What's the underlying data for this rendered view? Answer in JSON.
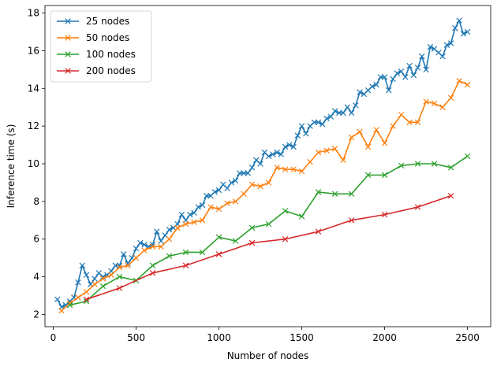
{
  "chart_data": {
    "type": "line",
    "title": "",
    "xlabel": "Number of nodes",
    "ylabel": "Inference time (s)",
    "xlim": [
      -50,
      2640
    ],
    "ylim": [
      1.35,
      18.4
    ],
    "xticks": [
      0,
      500,
      1000,
      1500,
      2000,
      2500
    ],
    "yticks": [
      2,
      4,
      6,
      8,
      10,
      12,
      14,
      16,
      18
    ],
    "grid": false,
    "legend": "top-left",
    "marker": "x",
    "series": [
      {
        "name": "25 nodes",
        "color": "#1f77b4",
        "x": [
          25,
          50,
          75,
          100,
          125,
          150,
          175,
          200,
          225,
          250,
          275,
          300,
          325,
          350,
          375,
          400,
          425,
          450,
          475,
          500,
          525,
          550,
          575,
          600,
          625,
          650,
          675,
          700,
          725,
          750,
          775,
          800,
          825,
          850,
          875,
          900,
          925,
          950,
          975,
          1000,
          1025,
          1050,
          1075,
          1100,
          1125,
          1150,
          1175,
          1200,
          1225,
          1250,
          1275,
          1300,
          1325,
          1350,
          1375,
          1400,
          1425,
          1450,
          1475,
          1500,
          1525,
          1550,
          1575,
          1600,
          1625,
          1650,
          1675,
          1700,
          1725,
          1750,
          1775,
          1800,
          1825,
          1850,
          1875,
          1900,
          1925,
          1950,
          1975,
          2000,
          2025,
          2050,
          2075,
          2100,
          2125,
          2150,
          2175,
          2200,
          2225,
          2250,
          2275,
          2300,
          2325,
          2350,
          2375,
          2400,
          2425,
          2450,
          2475,
          2500
        ],
        "y": [
          2.8,
          2.4,
          2.5,
          2.7,
          2.9,
          3.7,
          4.6,
          4.1,
          3.6,
          3.9,
          4.2,
          4.0,
          4.1,
          4.3,
          4.6,
          4.6,
          5.2,
          4.7,
          5.0,
          5.5,
          5.8,
          5.7,
          5.6,
          5.7,
          6.4,
          5.9,
          6.2,
          6.5,
          6.6,
          6.8,
          7.3,
          7.0,
          7.3,
          7.4,
          7.7,
          7.8,
          8.3,
          8.3,
          8.5,
          8.6,
          8.9,
          8.7,
          9.0,
          9.1,
          9.5,
          9.5,
          9.5,
          9.8,
          10.2,
          10.0,
          10.6,
          10.4,
          10.5,
          10.6,
          10.5,
          10.9,
          11.0,
          10.9,
          11.5,
          12.0,
          11.6,
          12.0,
          12.2,
          12.2,
          12.1,
          12.4,
          12.5,
          12.8,
          12.7,
          12.7,
          13.0,
          12.7,
          13.1,
          13.8,
          13.7,
          13.9,
          14.1,
          14.2,
          14.6,
          14.6,
          13.9,
          14.5,
          14.8,
          14.9,
          14.6,
          15.2,
          14.7,
          15.1,
          15.7,
          15.0,
          16.2,
          16.1,
          15.9,
          15.7,
          16.3,
          16.4,
          17.2,
          17.6,
          16.9,
          17.0
        ]
      },
      {
        "name": "50 nodes",
        "color": "#ff7f0e",
        "x": [
          50,
          100,
          150,
          200,
          250,
          300,
          350,
          400,
          450,
          500,
          550,
          600,
          650,
          700,
          750,
          800,
          850,
          900,
          950,
          1000,
          1050,
          1100,
          1150,
          1200,
          1250,
          1300,
          1350,
          1400,
          1450,
          1500,
          1550,
          1600,
          1650,
          1700,
          1750,
          1800,
          1850,
          1900,
          1950,
          2000,
          2050,
          2100,
          2150,
          2200,
          2250,
          2300,
          2350,
          2400,
          2450,
          2500
        ],
        "y": [
          2.2,
          2.6,
          2.9,
          3.2,
          3.6,
          3.9,
          4.1,
          4.5,
          4.6,
          5.0,
          5.4,
          5.6,
          5.6,
          6.0,
          6.6,
          6.8,
          6.9,
          7.0,
          7.7,
          7.6,
          7.9,
          8.0,
          8.4,
          8.9,
          8.8,
          9.0,
          9.8,
          9.7,
          9.7,
          9.6,
          10.1,
          10.6,
          10.7,
          10.8,
          10.2,
          11.4,
          11.7,
          10.9,
          11.8,
          11.1,
          12.0,
          12.6,
          12.2,
          12.2,
          13.3,
          13.2,
          13.0,
          13.5,
          14.4,
          14.2
        ]
      },
      {
        "name": "100 nodes",
        "color": "#2ca02c",
        "x": [
          100,
          200,
          300,
          400,
          500,
          600,
          700,
          800,
          900,
          1000,
          1100,
          1200,
          1300,
          1400,
          1500,
          1600,
          1700,
          1800,
          1900,
          2000,
          2100,
          2200,
          2300,
          2400,
          2500
        ],
        "y": [
          2.5,
          2.7,
          3.5,
          4.0,
          3.8,
          4.6,
          5.1,
          5.3,
          5.3,
          6.1,
          5.9,
          6.6,
          6.8,
          7.5,
          7.2,
          8.5,
          8.4,
          8.4,
          9.4,
          9.4,
          9.9,
          10.0,
          10.0,
          9.8,
          10.4
        ]
      },
      {
        "name": "200 nodes",
        "color": "#d62728",
        "x": [
          200,
          400,
          600,
          800,
          1000,
          1200,
          1400,
          1600,
          1800,
          2000,
          2200,
          2400
        ],
        "y": [
          2.8,
          3.4,
          4.2,
          4.6,
          5.2,
          5.8,
          6.0,
          6.4,
          7.0,
          7.3,
          7.7,
          8.3
        ]
      }
    ]
  }
}
